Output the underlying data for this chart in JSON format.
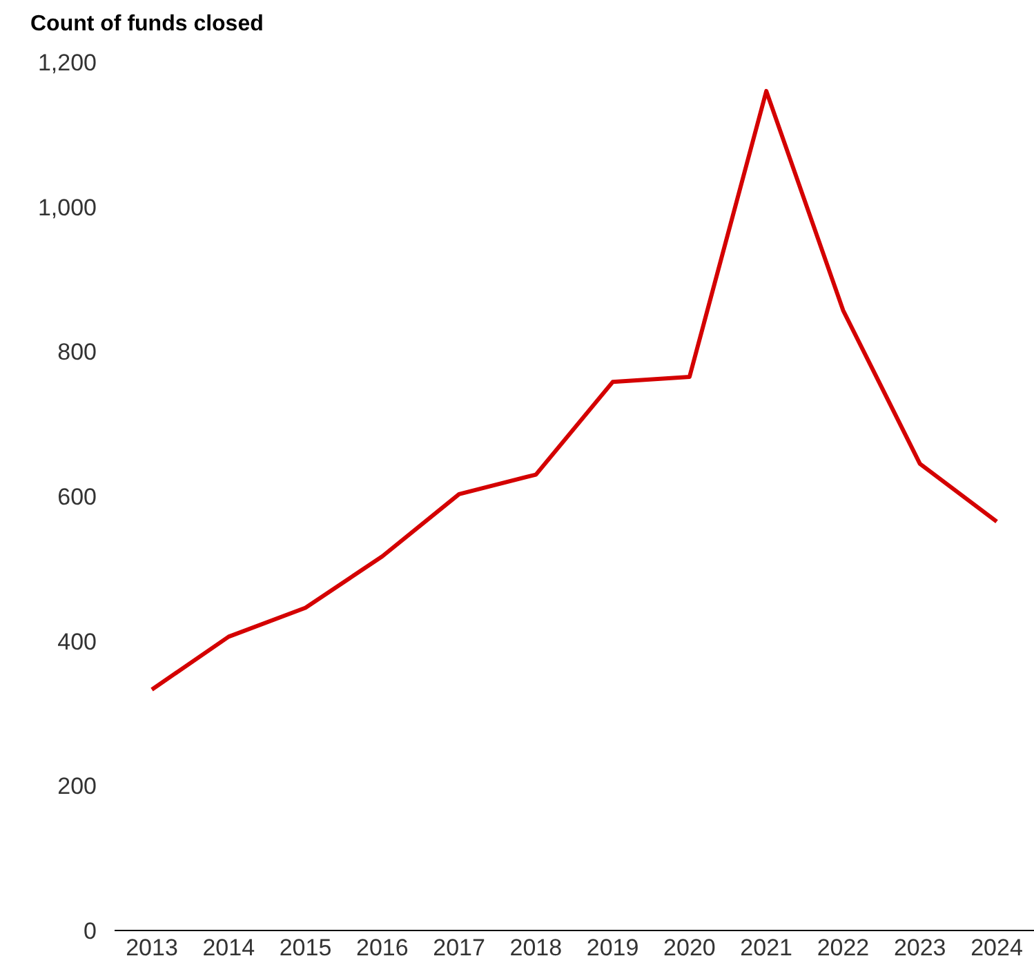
{
  "chart_data": {
    "type": "line",
    "title": "Count of funds closed",
    "categories": [
      "2013",
      "2014",
      "2015",
      "2016",
      "2017",
      "2018",
      "2019",
      "2020",
      "2021",
      "2022",
      "2023",
      "2024"
    ],
    "series": [
      {
        "color": "#d40000",
        "values": [
          333,
          406,
          446,
          517,
          603,
          630,
          758,
          765,
          1160,
          857,
          645,
          565
        ]
      }
    ],
    "ylim": [
      0,
      1200
    ],
    "yticks": [
      0,
      {
        "value": 200,
        "label": "200"
      },
      {
        "value": 400,
        "label": "400"
      },
      {
        "value": 600,
        "label": "600"
      },
      {
        "value": 800,
        "label": "800"
      },
      {
        "value": 1000,
        "label": "1,000"
      },
      {
        "value": 1200,
        "label": "1,200"
      }
    ],
    "grid": false,
    "marker": "none",
    "line_style": "solid"
  }
}
